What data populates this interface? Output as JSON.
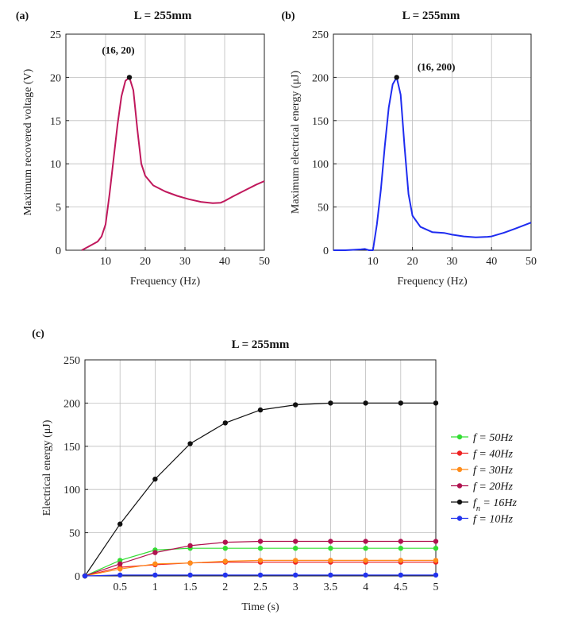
{
  "chart_data": [
    {
      "panel": "(a)",
      "type": "line",
      "title": "L = 255mm",
      "xlabel": "Frequency (Hz)",
      "ylabel": "Maximum recovered voltage (V)",
      "xlim": [
        0,
        50
      ],
      "ylim": [
        0,
        25
      ],
      "xticks": [
        10,
        20,
        30,
        40,
        50
      ],
      "yticks": [
        0,
        5,
        10,
        15,
        20,
        25
      ],
      "grid": true,
      "series": [
        {
          "name": "voltage",
          "color": "#c0185c",
          "x": [
            4,
            6,
            8,
            9,
            10,
            11,
            12,
            13,
            14,
            15,
            16,
            17,
            18,
            19,
            20,
            22,
            25,
            28,
            31,
            34,
            37,
            39,
            40,
            42,
            45,
            48,
            50
          ],
          "y": [
            0,
            0.5,
            1.0,
            1.6,
            3.0,
            6.5,
            10.5,
            14.5,
            17.8,
            19.6,
            20,
            18.5,
            14.0,
            10.0,
            8.6,
            7.5,
            6.8,
            6.3,
            5.9,
            5.6,
            5.45,
            5.5,
            5.7,
            6.2,
            6.9,
            7.6,
            8.0
          ]
        }
      ],
      "annotation": {
        "label": "(16, 20)",
        "x": 16,
        "y": 20
      }
    },
    {
      "panel": "(b)",
      "type": "line",
      "title": "L = 255mm",
      "xlabel": "Frequency (Hz)",
      "ylabel": "Maximum electrical energy (μJ)",
      "xlim": [
        0,
        50
      ],
      "ylim": [
        0,
        250
      ],
      "xticks": [
        10,
        20,
        30,
        40,
        50
      ],
      "yticks": [
        0,
        50,
        100,
        150,
        200,
        250
      ],
      "grid": true,
      "series": [
        {
          "name": "energy",
          "color": "#1e2cf0",
          "x": [
            0,
            3,
            5,
            7,
            8,
            9,
            9.5,
            10,
            11,
            12,
            13,
            14,
            15,
            16,
            17,
            18,
            19,
            20,
            22,
            25,
            28,
            30,
            33,
            36,
            39,
            40,
            43,
            46,
            50
          ],
          "y": [
            0,
            0,
            0.5,
            1,
            1.5,
            0,
            0,
            0,
            30,
            70,
            120,
            165,
            192,
            200,
            180,
            120,
            65,
            40,
            27,
            21,
            20,
            18,
            16,
            15,
            15.5,
            16,
            20,
            25,
            32
          ]
        }
      ],
      "annotation": {
        "label": "(16, 200)",
        "x": 16,
        "y": 200
      }
    },
    {
      "panel": "(c)",
      "type": "line",
      "title": "L = 255mm",
      "xlabel": "Time (s)",
      "ylabel": "Electrical energy (μJ)",
      "xlim": [
        0,
        5
      ],
      "ylim": [
        0,
        250
      ],
      "xticks": [
        0.5,
        1,
        1.5,
        2,
        2.5,
        3,
        3.5,
        4,
        4.5,
        5
      ],
      "yticks": [
        0,
        50,
        100,
        150,
        200,
        250
      ],
      "grid": true,
      "legend_position": "right",
      "x": [
        0,
        0.5,
        1,
        1.5,
        2,
        2.5,
        3,
        3.5,
        4,
        4.5,
        5
      ],
      "series": [
        {
          "name": "f = 50Hz",
          "color": "#33dd33",
          "values": [
            0,
            18,
            30,
            32,
            32,
            32,
            32,
            32,
            32,
            32,
            32
          ]
        },
        {
          "name": "f = 40Hz",
          "color": "#ee2222",
          "values": [
            0,
            10,
            13,
            15,
            16,
            16,
            16,
            16,
            16,
            16,
            16
          ]
        },
        {
          "name": "f = 30Hz",
          "color": "#ff8c1a",
          "values": [
            0,
            8,
            14,
            15,
            17,
            18,
            18,
            18,
            18,
            18,
            18
          ]
        },
        {
          "name": "f = 20Hz",
          "color": "#b0124f",
          "values": [
            0,
            14,
            27,
            35,
            39,
            40,
            40,
            40,
            40,
            40,
            40
          ]
        },
        {
          "name": "fn = 16Hz",
          "color": "#111111",
          "values": [
            0,
            60,
            112,
            153,
            177,
            192,
            198,
            200,
            200,
            200,
            200
          ]
        },
        {
          "name": "f = 10Hz",
          "color": "#2233ee",
          "values": [
            0,
            1,
            1,
            1,
            1,
            1,
            1,
            1,
            1,
            1,
            1
          ]
        }
      ],
      "legend_labels": [
        {
          "prefix": "f",
          "sub": "",
          "text": " = 50Hz"
        },
        {
          "prefix": "f",
          "sub": "",
          "text": " = 40Hz"
        },
        {
          "prefix": "f",
          "sub": "",
          "text": " = 30Hz"
        },
        {
          "prefix": "f",
          "sub": "",
          "text": " = 20Hz"
        },
        {
          "prefix": "f",
          "sub": "n",
          "text": " = 16Hz"
        },
        {
          "prefix": "f",
          "sub": "",
          "text": " = 10Hz"
        }
      ]
    }
  ]
}
